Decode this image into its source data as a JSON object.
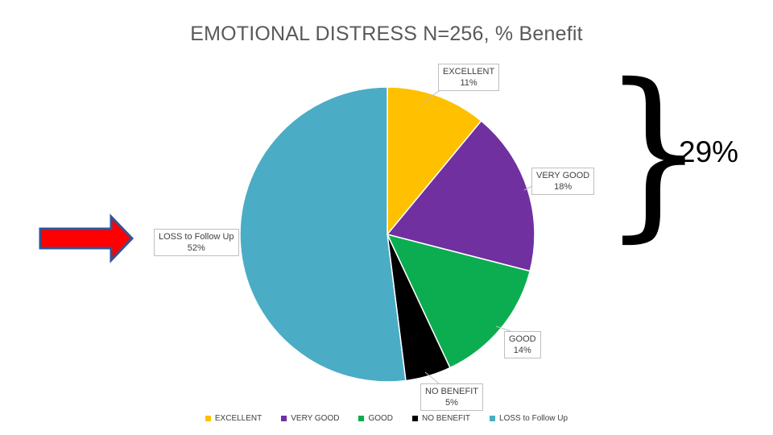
{
  "title": "EMOTIONAL DISTRESS N=256, % Benefit",
  "chart_data": {
    "type": "pie",
    "title": "EMOTIONAL DISTRESS N=256, % Benefit",
    "categories": [
      "EXCELLENT",
      "VERY GOOD",
      "GOOD",
      "NO BENEFIT",
      "LOSS to Follow Up"
    ],
    "values": [
      11,
      18,
      14,
      5,
      52
    ],
    "labels": [
      "11%",
      "18%",
      "14%",
      "5%",
      "52%"
    ],
    "unit": "percent",
    "colors": [
      "#FFC000",
      "#7030A0",
      "#0CAD50",
      "#000000",
      "#4BACC6"
    ],
    "start_angle_deg": 0,
    "direction": "clockwise",
    "legend_position": "bottom",
    "data_label_style": "boxed-callouts"
  },
  "annotations": {
    "brace_glyph": "}",
    "brace_value": "29%",
    "brace_meaning_values": [
      "EXCELLENT",
      "VERY GOOD"
    ]
  },
  "arrow": {
    "fill": "#FF0000",
    "border": "#2F5597",
    "points_at": "LOSS to Follow Up 52%"
  }
}
